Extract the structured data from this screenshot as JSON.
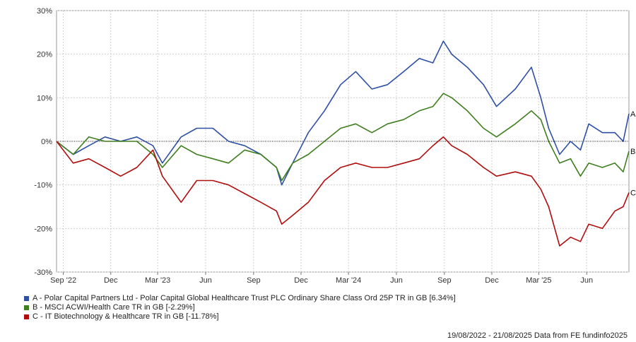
{
  "chart_data": {
    "type": "line",
    "ylim": [
      -30,
      30
    ],
    "y_ticks": [
      {
        "value": 30,
        "label": "30%"
      },
      {
        "value": 20,
        "label": "20%"
      },
      {
        "value": 10,
        "label": "10%"
      },
      {
        "value": 0,
        "label": "0%"
      },
      {
        "value": -10,
        "label": "-10%"
      },
      {
        "value": -20,
        "label": "-20%"
      },
      {
        "value": -30,
        "label": "-30%"
      }
    ],
    "x_range": [
      "2022-08-19",
      "2025-08-21"
    ],
    "x_ticks": [
      {
        "date": "2022-09-01",
        "label": "Sep '22"
      },
      {
        "date": "2022-12-01",
        "label": "Dec"
      },
      {
        "date": "2023-03-01",
        "label": "Mar '23"
      },
      {
        "date": "2023-06-01",
        "label": "Jun"
      },
      {
        "date": "2023-09-01",
        "label": "Sep"
      },
      {
        "date": "2023-12-01",
        "label": "Dec"
      },
      {
        "date": "2024-03-01",
        "label": "Mar '24"
      },
      {
        "date": "2024-06-01",
        "label": "Jun"
      },
      {
        "date": "2024-09-01",
        "label": "Sep"
      },
      {
        "date": "2024-12-01",
        "label": "Dec"
      },
      {
        "date": "2025-03-01",
        "label": "Mar '25"
      },
      {
        "date": "2025-06-01",
        "label": "Jun"
      }
    ],
    "grid": true,
    "series": [
      {
        "name": "A - Polar Capital Partners Ltd - Polar Capital Global Healthcare Trust PLC Ordinary Share Class Ord 25P TR in GB [6.34%]",
        "end_label": "A",
        "color": "#2e4fa3",
        "points": [
          [
            "2022-08-19",
            0
          ],
          [
            "2022-09-20",
            -3
          ],
          [
            "2022-10-20",
            -1
          ],
          [
            "2022-11-20",
            1
          ],
          [
            "2022-12-20",
            0
          ],
          [
            "2023-01-20",
            1
          ],
          [
            "2023-02-20",
            -1
          ],
          [
            "2023-03-10",
            -5
          ],
          [
            "2023-04-15",
            1
          ],
          [
            "2023-05-15",
            3
          ],
          [
            "2023-06-15",
            3
          ],
          [
            "2023-07-15",
            0
          ],
          [
            "2023-08-15",
            -1
          ],
          [
            "2023-09-15",
            -3
          ],
          [
            "2023-10-15",
            -6
          ],
          [
            "2023-10-25",
            -10
          ],
          [
            "2023-11-15",
            -5
          ],
          [
            "2023-12-15",
            2
          ],
          [
            "2024-01-15",
            7
          ],
          [
            "2024-02-15",
            13
          ],
          [
            "2024-03-15",
            16
          ],
          [
            "2024-04-15",
            12
          ],
          [
            "2024-05-15",
            13
          ],
          [
            "2024-06-15",
            16
          ],
          [
            "2024-07-15",
            19
          ],
          [
            "2024-08-10",
            18
          ],
          [
            "2024-08-30",
            23
          ],
          [
            "2024-09-15",
            20
          ],
          [
            "2024-10-15",
            17
          ],
          [
            "2024-11-15",
            13
          ],
          [
            "2024-12-10",
            8
          ],
          [
            "2025-01-15",
            12
          ],
          [
            "2025-02-15",
            17
          ],
          [
            "2025-03-05",
            10
          ],
          [
            "2025-03-20",
            3
          ],
          [
            "2025-04-10",
            -3
          ],
          [
            "2025-05-01",
            0
          ],
          [
            "2025-05-20",
            -2
          ],
          [
            "2025-06-05",
            4
          ],
          [
            "2025-07-01",
            2
          ],
          [
            "2025-07-25",
            2
          ],
          [
            "2025-08-10",
            0
          ],
          [
            "2025-08-21",
            6.34
          ]
        ]
      },
      {
        "name": "B - MSCI ACWI/Health Care TR in GB [-2.29%]",
        "end_label": "B",
        "color": "#3f7f1f",
        "points": [
          [
            "2022-08-19",
            0
          ],
          [
            "2022-09-20",
            -3
          ],
          [
            "2022-10-20",
            1
          ],
          [
            "2022-11-20",
            0
          ],
          [
            "2022-12-20",
            0
          ],
          [
            "2023-01-20",
            0
          ],
          [
            "2023-02-20",
            -3
          ],
          [
            "2023-03-10",
            -6
          ],
          [
            "2023-04-15",
            -1
          ],
          [
            "2023-05-15",
            -3
          ],
          [
            "2023-06-15",
            -4
          ],
          [
            "2023-07-15",
            -5
          ],
          [
            "2023-08-15",
            -2
          ],
          [
            "2023-09-15",
            -3
          ],
          [
            "2023-10-15",
            -6
          ],
          [
            "2023-10-25",
            -9
          ],
          [
            "2023-11-15",
            -5
          ],
          [
            "2023-12-15",
            -3
          ],
          [
            "2024-01-15",
            0
          ],
          [
            "2024-02-15",
            3
          ],
          [
            "2024-03-15",
            4
          ],
          [
            "2024-04-15",
            2
          ],
          [
            "2024-05-15",
            4
          ],
          [
            "2024-06-15",
            5
          ],
          [
            "2024-07-15",
            7
          ],
          [
            "2024-08-10",
            8
          ],
          [
            "2024-08-30",
            11
          ],
          [
            "2024-09-15",
            10
          ],
          [
            "2024-10-15",
            7
          ],
          [
            "2024-11-15",
            3
          ],
          [
            "2024-12-10",
            1
          ],
          [
            "2025-01-15",
            4
          ],
          [
            "2025-02-15",
            7
          ],
          [
            "2025-03-05",
            5
          ],
          [
            "2025-03-20",
            0
          ],
          [
            "2025-04-10",
            -5
          ],
          [
            "2025-05-01",
            -4
          ],
          [
            "2025-05-20",
            -8
          ],
          [
            "2025-06-05",
            -5
          ],
          [
            "2025-07-01",
            -6
          ],
          [
            "2025-07-25",
            -5
          ],
          [
            "2025-08-10",
            -7
          ],
          [
            "2025-08-21",
            -2.29
          ]
        ]
      },
      {
        "name": "C - IT Biotechnology & Healthcare TR in GB [-11.78%]",
        "end_label": "C",
        "color": "#b00d0d",
        "points": [
          [
            "2022-08-19",
            0
          ],
          [
            "2022-09-20",
            -5
          ],
          [
            "2022-10-20",
            -4
          ],
          [
            "2022-11-20",
            -6
          ],
          [
            "2022-12-20",
            -8
          ],
          [
            "2023-01-20",
            -6
          ],
          [
            "2023-02-20",
            -2
          ],
          [
            "2023-03-10",
            -8
          ],
          [
            "2023-04-15",
            -14
          ],
          [
            "2023-05-15",
            -9
          ],
          [
            "2023-06-15",
            -9
          ],
          [
            "2023-07-15",
            -10
          ],
          [
            "2023-08-15",
            -12
          ],
          [
            "2023-09-15",
            -14
          ],
          [
            "2023-10-15",
            -16
          ],
          [
            "2023-10-25",
            -19
          ],
          [
            "2023-11-15",
            -17
          ],
          [
            "2023-12-15",
            -14
          ],
          [
            "2024-01-15",
            -9
          ],
          [
            "2024-02-15",
            -6
          ],
          [
            "2024-03-15",
            -5
          ],
          [
            "2024-04-15",
            -6
          ],
          [
            "2024-05-15",
            -6
          ],
          [
            "2024-06-15",
            -5
          ],
          [
            "2024-07-15",
            -4
          ],
          [
            "2024-08-10",
            -1
          ],
          [
            "2024-08-30",
            1
          ],
          [
            "2024-09-15",
            -1
          ],
          [
            "2024-10-15",
            -3
          ],
          [
            "2024-11-15",
            -6
          ],
          [
            "2024-12-10",
            -8
          ],
          [
            "2025-01-15",
            -7
          ],
          [
            "2025-02-15",
            -8
          ],
          [
            "2025-03-05",
            -11
          ],
          [
            "2025-03-20",
            -15
          ],
          [
            "2025-04-10",
            -24
          ],
          [
            "2025-05-01",
            -22
          ],
          [
            "2025-05-20",
            -23
          ],
          [
            "2025-06-05",
            -19
          ],
          [
            "2025-07-01",
            -20
          ],
          [
            "2025-07-25",
            -16
          ],
          [
            "2025-08-10",
            -15
          ],
          [
            "2025-08-21",
            -11.78
          ]
        ]
      }
    ]
  },
  "footer": "19/08/2022 - 21/08/2025 Data from FE fundinfo2025"
}
